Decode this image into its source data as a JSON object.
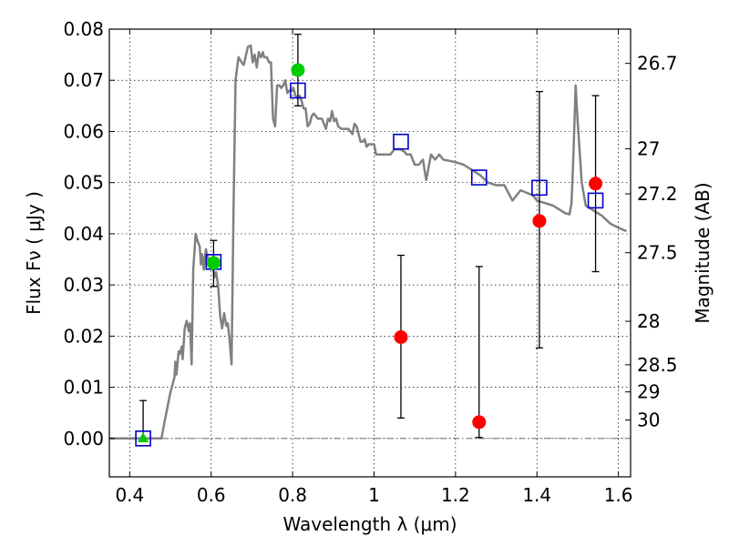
{
  "chart_data": {
    "type": "scatter",
    "xlabel": "Wavelength  λ (μm)",
    "ylabel": "Flux  Fν  ( μJy )",
    "y2label": "Magnitude (AB)",
    "xlim": [
      0.35,
      1.63
    ],
    "ylim": [
      -0.0075,
      0.08
    ],
    "grid": true,
    "x_ticks": [
      0.4,
      0.6,
      0.8,
      1.0,
      1.2,
      1.4,
      1.6
    ],
    "x_tick_labels": [
      "0.4",
      "0.6",
      "0.8",
      "1",
      "1.2",
      "1.4",
      "1.6"
    ],
    "y_ticks": [
      0.0,
      0.01,
      0.02,
      0.03,
      0.04,
      0.05,
      0.06,
      0.07,
      0.08
    ],
    "y_tick_labels": [
      "0.00",
      "0.01",
      "0.02",
      "0.03",
      "0.04",
      "0.05",
      "0.06",
      "0.07",
      "0.08"
    ],
    "right_axis": {
      "ticks": [
        {
          "label": "26.7",
          "flux": 0.0733
        },
        {
          "label": "27",
          "flux": 0.0566
        },
        {
          "label": "27.2",
          "flux": 0.0478
        },
        {
          "label": "27.5",
          "flux": 0.0363
        },
        {
          "label": "28",
          "flux": 0.0229
        },
        {
          "label": "28.5",
          "flux": 0.0144
        },
        {
          "label": "29",
          "flux": 0.0091
        },
        {
          "label": "30",
          "flux": 0.0036
        }
      ]
    },
    "series": [
      {
        "kind": "line",
        "color": "#808080",
        "points": [
          [
            0.35,
            0.0
          ],
          [
            0.478,
            0.0
          ],
          [
            0.485,
            0.003
          ],
          [
            0.5,
            0.009
          ],
          [
            0.51,
            0.012
          ],
          [
            0.512,
            0.015
          ],
          [
            0.515,
            0.0125
          ],
          [
            0.52,
            0.017
          ],
          [
            0.523,
            0.0165
          ],
          [
            0.528,
            0.018
          ],
          [
            0.53,
            0.0155
          ],
          [
            0.535,
            0.0215
          ],
          [
            0.54,
            0.023
          ],
          [
            0.545,
            0.021
          ],
          [
            0.548,
            0.0225
          ],
          [
            0.552,
            0.0145
          ],
          [
            0.556,
            0.033
          ],
          [
            0.562,
            0.04
          ],
          [
            0.567,
            0.0385
          ],
          [
            0.572,
            0.0375
          ],
          [
            0.575,
            0.034
          ],
          [
            0.578,
            0.036
          ],
          [
            0.582,
            0.033
          ],
          [
            0.587,
            0.037
          ],
          [
            0.593,
            0.035
          ],
          [
            0.598,
            0.034
          ],
          [
            0.603,
            0.0345
          ],
          [
            0.608,
            0.0315
          ],
          [
            0.612,
            0.0325
          ],
          [
            0.617,
            0.03
          ],
          [
            0.622,
            0.024
          ],
          [
            0.627,
            0.0215
          ],
          [
            0.632,
            0.0245
          ],
          [
            0.637,
            0.022
          ],
          [
            0.641,
            0.0225
          ],
          [
            0.645,
            0.0195
          ],
          [
            0.65,
            0.0145
          ],
          [
            0.655,
            0.045
          ],
          [
            0.66,
            0.07
          ],
          [
            0.667,
            0.0745
          ],
          [
            0.675,
            0.0735
          ],
          [
            0.68,
            0.073
          ],
          [
            0.69,
            0.0765
          ],
          [
            0.697,
            0.0768
          ],
          [
            0.702,
            0.0735
          ],
          [
            0.707,
            0.075
          ],
          [
            0.712,
            0.0725
          ],
          [
            0.717,
            0.0755
          ],
          [
            0.722,
            0.0745
          ],
          [
            0.727,
            0.0755
          ],
          [
            0.73,
            0.0745
          ],
          [
            0.737,
            0.0745
          ],
          [
            0.742,
            0.0735
          ],
          [
            0.747,
            0.0735
          ],
          [
            0.752,
            0.0625
          ],
          [
            0.757,
            0.061
          ],
          [
            0.762,
            0.069
          ],
          [
            0.768,
            0.069
          ],
          [
            0.772,
            0.0685
          ],
          [
            0.777,
            0.069
          ],
          [
            0.782,
            0.07
          ],
          [
            0.787,
            0.0675
          ],
          [
            0.792,
            0.068
          ],
          [
            0.797,
            0.068
          ],
          [
            0.802,
            0.0685
          ],
          [
            0.807,
            0.067
          ],
          [
            0.812,
            0.0665
          ],
          [
            0.817,
            0.067
          ],
          [
            0.822,
            0.066
          ],
          [
            0.827,
            0.0645
          ],
          [
            0.832,
            0.0645
          ],
          [
            0.837,
            0.061
          ],
          [
            0.842,
            0.0615
          ],
          [
            0.847,
            0.063
          ],
          [
            0.852,
            0.0635
          ],
          [
            0.857,
            0.063
          ],
          [
            0.862,
            0.0625
          ],
          [
            0.872,
            0.0625
          ],
          [
            0.877,
            0.0615
          ],
          [
            0.882,
            0.0605
          ],
          [
            0.887,
            0.0625
          ],
          [
            0.892,
            0.062
          ],
          [
            0.897,
            0.064
          ],
          [
            0.902,
            0.062
          ],
          [
            0.907,
            0.0625
          ],
          [
            0.912,
            0.061
          ],
          [
            0.92,
            0.0605
          ],
          [
            0.93,
            0.0605
          ],
          [
            0.937,
            0.0605
          ],
          [
            0.942,
            0.06
          ],
          [
            0.947,
            0.0595
          ],
          [
            0.952,
            0.0615
          ],
          [
            0.957,
            0.061
          ],
          [
            0.962,
            0.0595
          ],
          [
            0.967,
            0.058
          ],
          [
            0.972,
            0.058
          ],
          [
            0.977,
            0.0585
          ],
          [
            0.982,
            0.057
          ],
          [
            0.987,
            0.0575
          ],
          [
            1.0,
            0.0575
          ],
          [
            1.005,
            0.0555
          ],
          [
            1.015,
            0.0555
          ],
          [
            1.025,
            0.0555
          ],
          [
            1.04,
            0.0555
          ],
          [
            1.05,
            0.0565
          ],
          [
            1.065,
            0.0565
          ],
          [
            1.075,
            0.056
          ],
          [
            1.08,
            0.0555
          ],
          [
            1.09,
            0.0555
          ],
          [
            1.1,
            0.0535
          ],
          [
            1.11,
            0.0535
          ],
          [
            1.12,
            0.0545
          ],
          [
            1.128,
            0.0505
          ],
          [
            1.14,
            0.0555
          ],
          [
            1.15,
            0.0545
          ],
          [
            1.16,
            0.0555
          ],
          [
            1.17,
            0.0545
          ],
          [
            1.2,
            0.054
          ],
          [
            1.22,
            0.0535
          ],
          [
            1.24,
            0.0525
          ],
          [
            1.26,
            0.0515
          ],
          [
            1.28,
            0.05
          ],
          [
            1.3,
            0.0495
          ],
          [
            1.32,
            0.0495
          ],
          [
            1.34,
            0.0465
          ],
          [
            1.36,
            0.0485
          ],
          [
            1.375,
            0.048
          ],
          [
            1.39,
            0.0475
          ],
          [
            1.4,
            0.0465
          ],
          [
            1.42,
            0.046
          ],
          [
            1.44,
            0.0455
          ],
          [
            1.45,
            0.045
          ],
          [
            1.47,
            0.044
          ],
          [
            1.48,
            0.0438
          ],
          [
            1.485,
            0.046
          ],
          [
            1.49,
            0.056
          ],
          [
            1.495,
            0.069
          ],
          [
            1.5,
            0.062
          ],
          [
            1.51,
            0.05
          ],
          [
            1.52,
            0.0455
          ],
          [
            1.54,
            0.0445
          ],
          [
            1.56,
            0.0435
          ],
          [
            1.58,
            0.042
          ],
          [
            1.6,
            0.0412
          ],
          [
            1.62,
            0.0405
          ]
        ]
      },
      {
        "kind": "markers",
        "marker": "square",
        "color": "#0000cc",
        "points": [
          [
            0.433,
            0.0
          ],
          [
            0.606,
            0.0345
          ],
          [
            0.813,
            0.068
          ],
          [
            1.066,
            0.058
          ],
          [
            1.258,
            0.051
          ],
          [
            1.406,
            0.049
          ],
          [
            1.544,
            0.0465
          ]
        ]
      },
      {
        "kind": "markers",
        "marker": "circle",
        "color": "#00cc00",
        "points": [
          [
            0.606,
            0.0343
          ],
          [
            0.813,
            0.072
          ]
        ]
      },
      {
        "kind": "markers",
        "marker": "triangle",
        "color": "#00cc00",
        "points": [
          [
            0.433,
            0.0
          ]
        ]
      },
      {
        "kind": "markers",
        "marker": "circle",
        "color": "#ff0000",
        "points": [
          [
            1.066,
            0.0198
          ],
          [
            1.258,
            0.0032
          ],
          [
            1.406,
            0.0425
          ],
          [
            1.544,
            0.0498
          ]
        ]
      }
    ],
    "error_bars": [
      {
        "x": 0.433,
        "low": -0.0002,
        "high": 0.0074
      },
      {
        "x": 0.606,
        "low": 0.0297,
        "high": 0.0387
      },
      {
        "x": 0.813,
        "low": 0.065,
        "high": 0.079
      },
      {
        "x": 1.066,
        "low": 0.004,
        "high": 0.0358
      },
      {
        "x": 1.258,
        "low": 0.0002,
        "high": 0.0336
      },
      {
        "x": 1.406,
        "low": 0.0177,
        "high": 0.0678
      },
      {
        "x": 1.544,
        "low": 0.0326,
        "high": 0.067
      }
    ],
    "hline": {
      "y": 0.0,
      "style": "dash-dot",
      "color": "#555555"
    }
  }
}
